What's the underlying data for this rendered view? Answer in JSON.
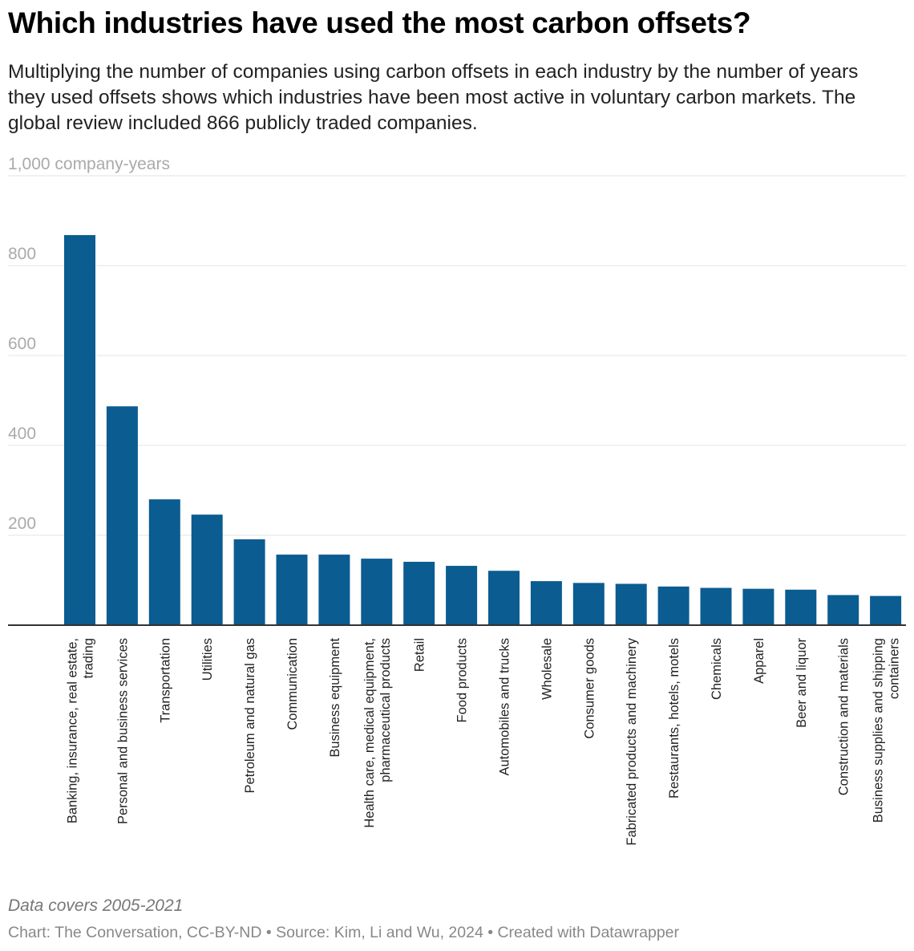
{
  "title": "Which industries have used the most carbon offsets?",
  "subtitle": "Multiplying the number of companies using carbon offsets in each industry by the number of years they used offsets shows which industries have been most active in voluntary carbon markets. The global review included 866 publicly traded companies.",
  "notes": "Data covers 2005-2021",
  "source": "Chart: The Conversation, CC-BY-ND • Source: Kim, Li and Wu, 2024 • Created with Datawrapper",
  "colors": {
    "bar": "#0a5c91"
  },
  "chart_data": {
    "type": "bar",
    "ylabel": "company-years",
    "ylim": [
      0,
      1000
    ],
    "yticks": [
      0,
      200,
      400,
      600,
      800,
      1000
    ],
    "ytick_labels": [
      "",
      "200",
      "400",
      "600",
      "800",
      "1,000 company-years"
    ],
    "grid": true,
    "categories": [
      [
        "Banking, insurance, real estate,",
        "trading"
      ],
      [
        "Personal and business services"
      ],
      [
        "Transportation"
      ],
      [
        "Utilities"
      ],
      [
        "Petroleum and natural gas"
      ],
      [
        "Communication"
      ],
      [
        "Business equipment"
      ],
      [
        "Health care, medical equipment,",
        "pharmaceutical products"
      ],
      [
        "Retail"
      ],
      [
        "Food products"
      ],
      [
        "Automobiles and trucks"
      ],
      [
        "Wholesale"
      ],
      [
        "Consumer goods"
      ],
      [
        "Fabricated products and machinery"
      ],
      [
        "Restaurants, hotels, motels"
      ],
      [
        "Chemicals"
      ],
      [
        "Apparel"
      ],
      [
        "Beer and liquor"
      ],
      [
        "Construction and materials"
      ],
      [
        "Business supplies and shipping",
        "containers"
      ]
    ],
    "values": [
      868,
      487,
      280,
      246,
      191,
      157,
      157,
      148,
      141,
      132,
      121,
      98,
      94,
      92,
      86,
      83,
      81,
      79,
      67,
      65
    ]
  }
}
